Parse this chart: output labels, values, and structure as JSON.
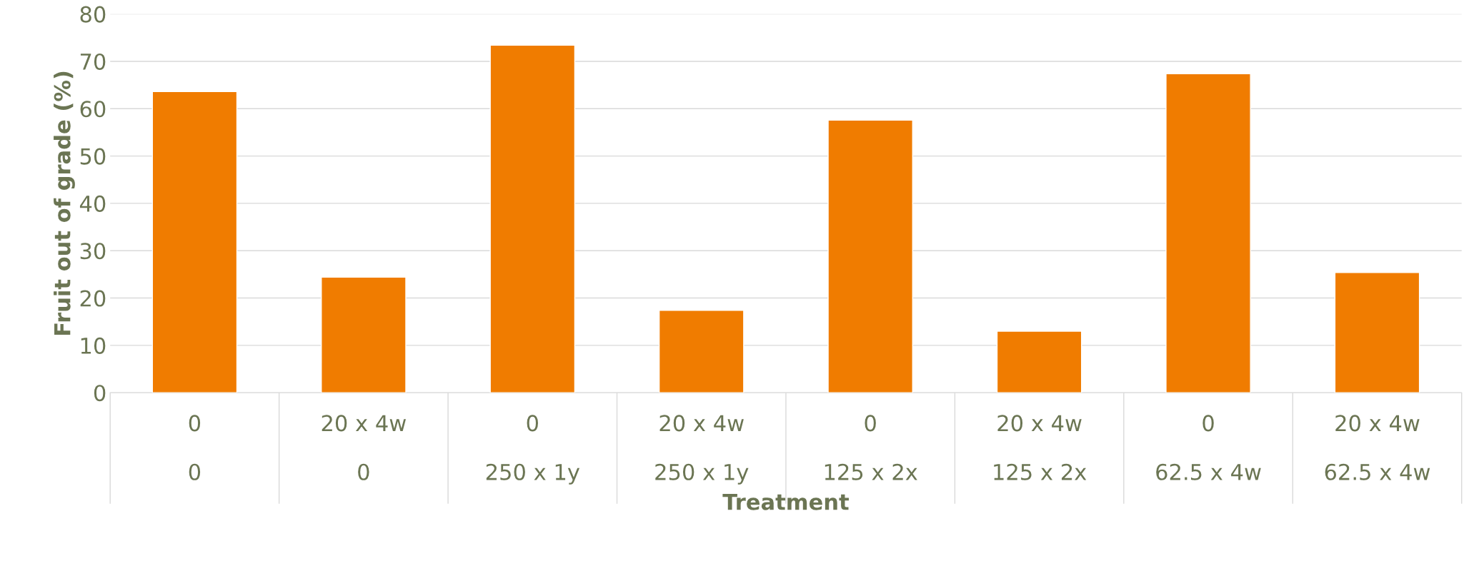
{
  "chart_data": {
    "type": "bar",
    "xlabel": "Treatment",
    "ylabel": "Fruit out of grade (%)",
    "categories": [
      "0\n\n0",
      "20 x 4w\n\n0",
      "0\n\n250 x 1y",
      "20 x 4w\n\n250 x 1y",
      "0\n\n125 x 2x",
      "20 x 4w\n\n125 x 2x",
      "0\n\n62.5 x 4w",
      "20 x 4w\n\n62.5 x 4w"
    ],
    "values": [
      63.6,
      24.4,
      73.4,
      17.4,
      57.6,
      13.0,
      67.4,
      25.4
    ],
    "color": "#f07c00",
    "ylim": [
      0,
      80
    ],
    "yticks": [
      0,
      10,
      20,
      30,
      40,
      50,
      60,
      70,
      80
    ],
    "grid": "y",
    "legend": false
  }
}
